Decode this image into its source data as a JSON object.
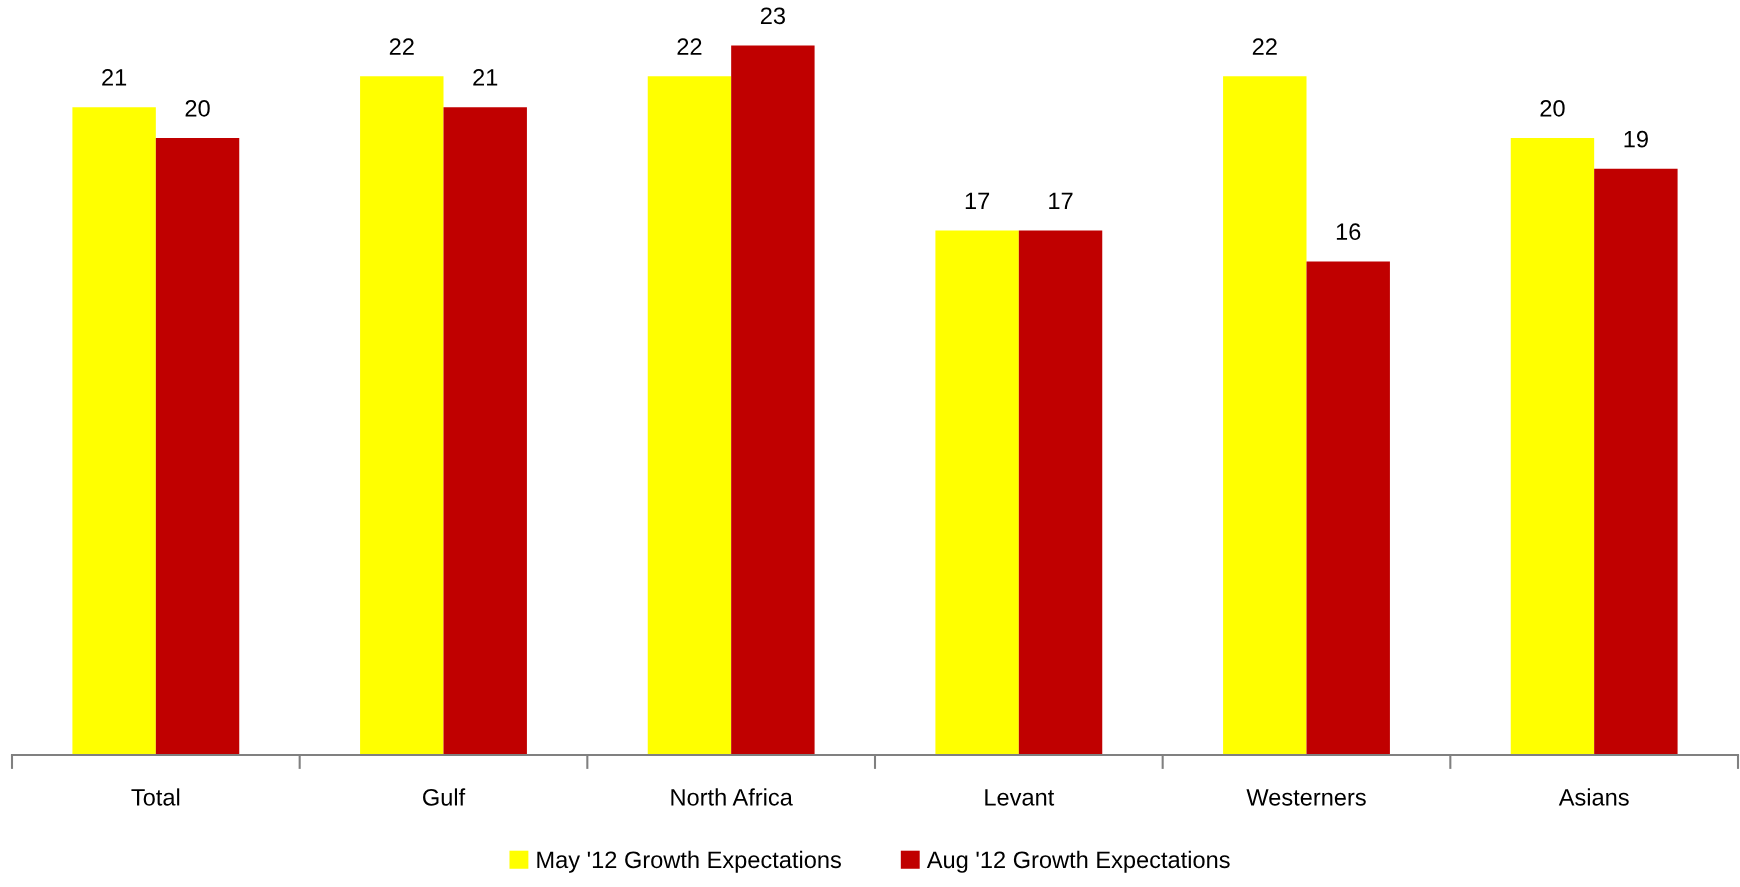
{
  "chart_data": {
    "type": "bar",
    "categories": [
      "Total",
      "Gulf",
      "North Africa",
      "Levant",
      "Westerners",
      "Asians"
    ],
    "series": [
      {
        "name": "May '12 Growth Expectations",
        "color": "#ffff00",
        "values": [
          21,
          22,
          22,
          17,
          22,
          20
        ]
      },
      {
        "name": "Aug '12 Growth Expectations",
        "color": "#c00000",
        "values": [
          20,
          21,
          23,
          17,
          16,
          19
        ]
      }
    ],
    "data_labels": true,
    "legend": "bottom",
    "tick_labels": "x",
    "grid": false
  }
}
